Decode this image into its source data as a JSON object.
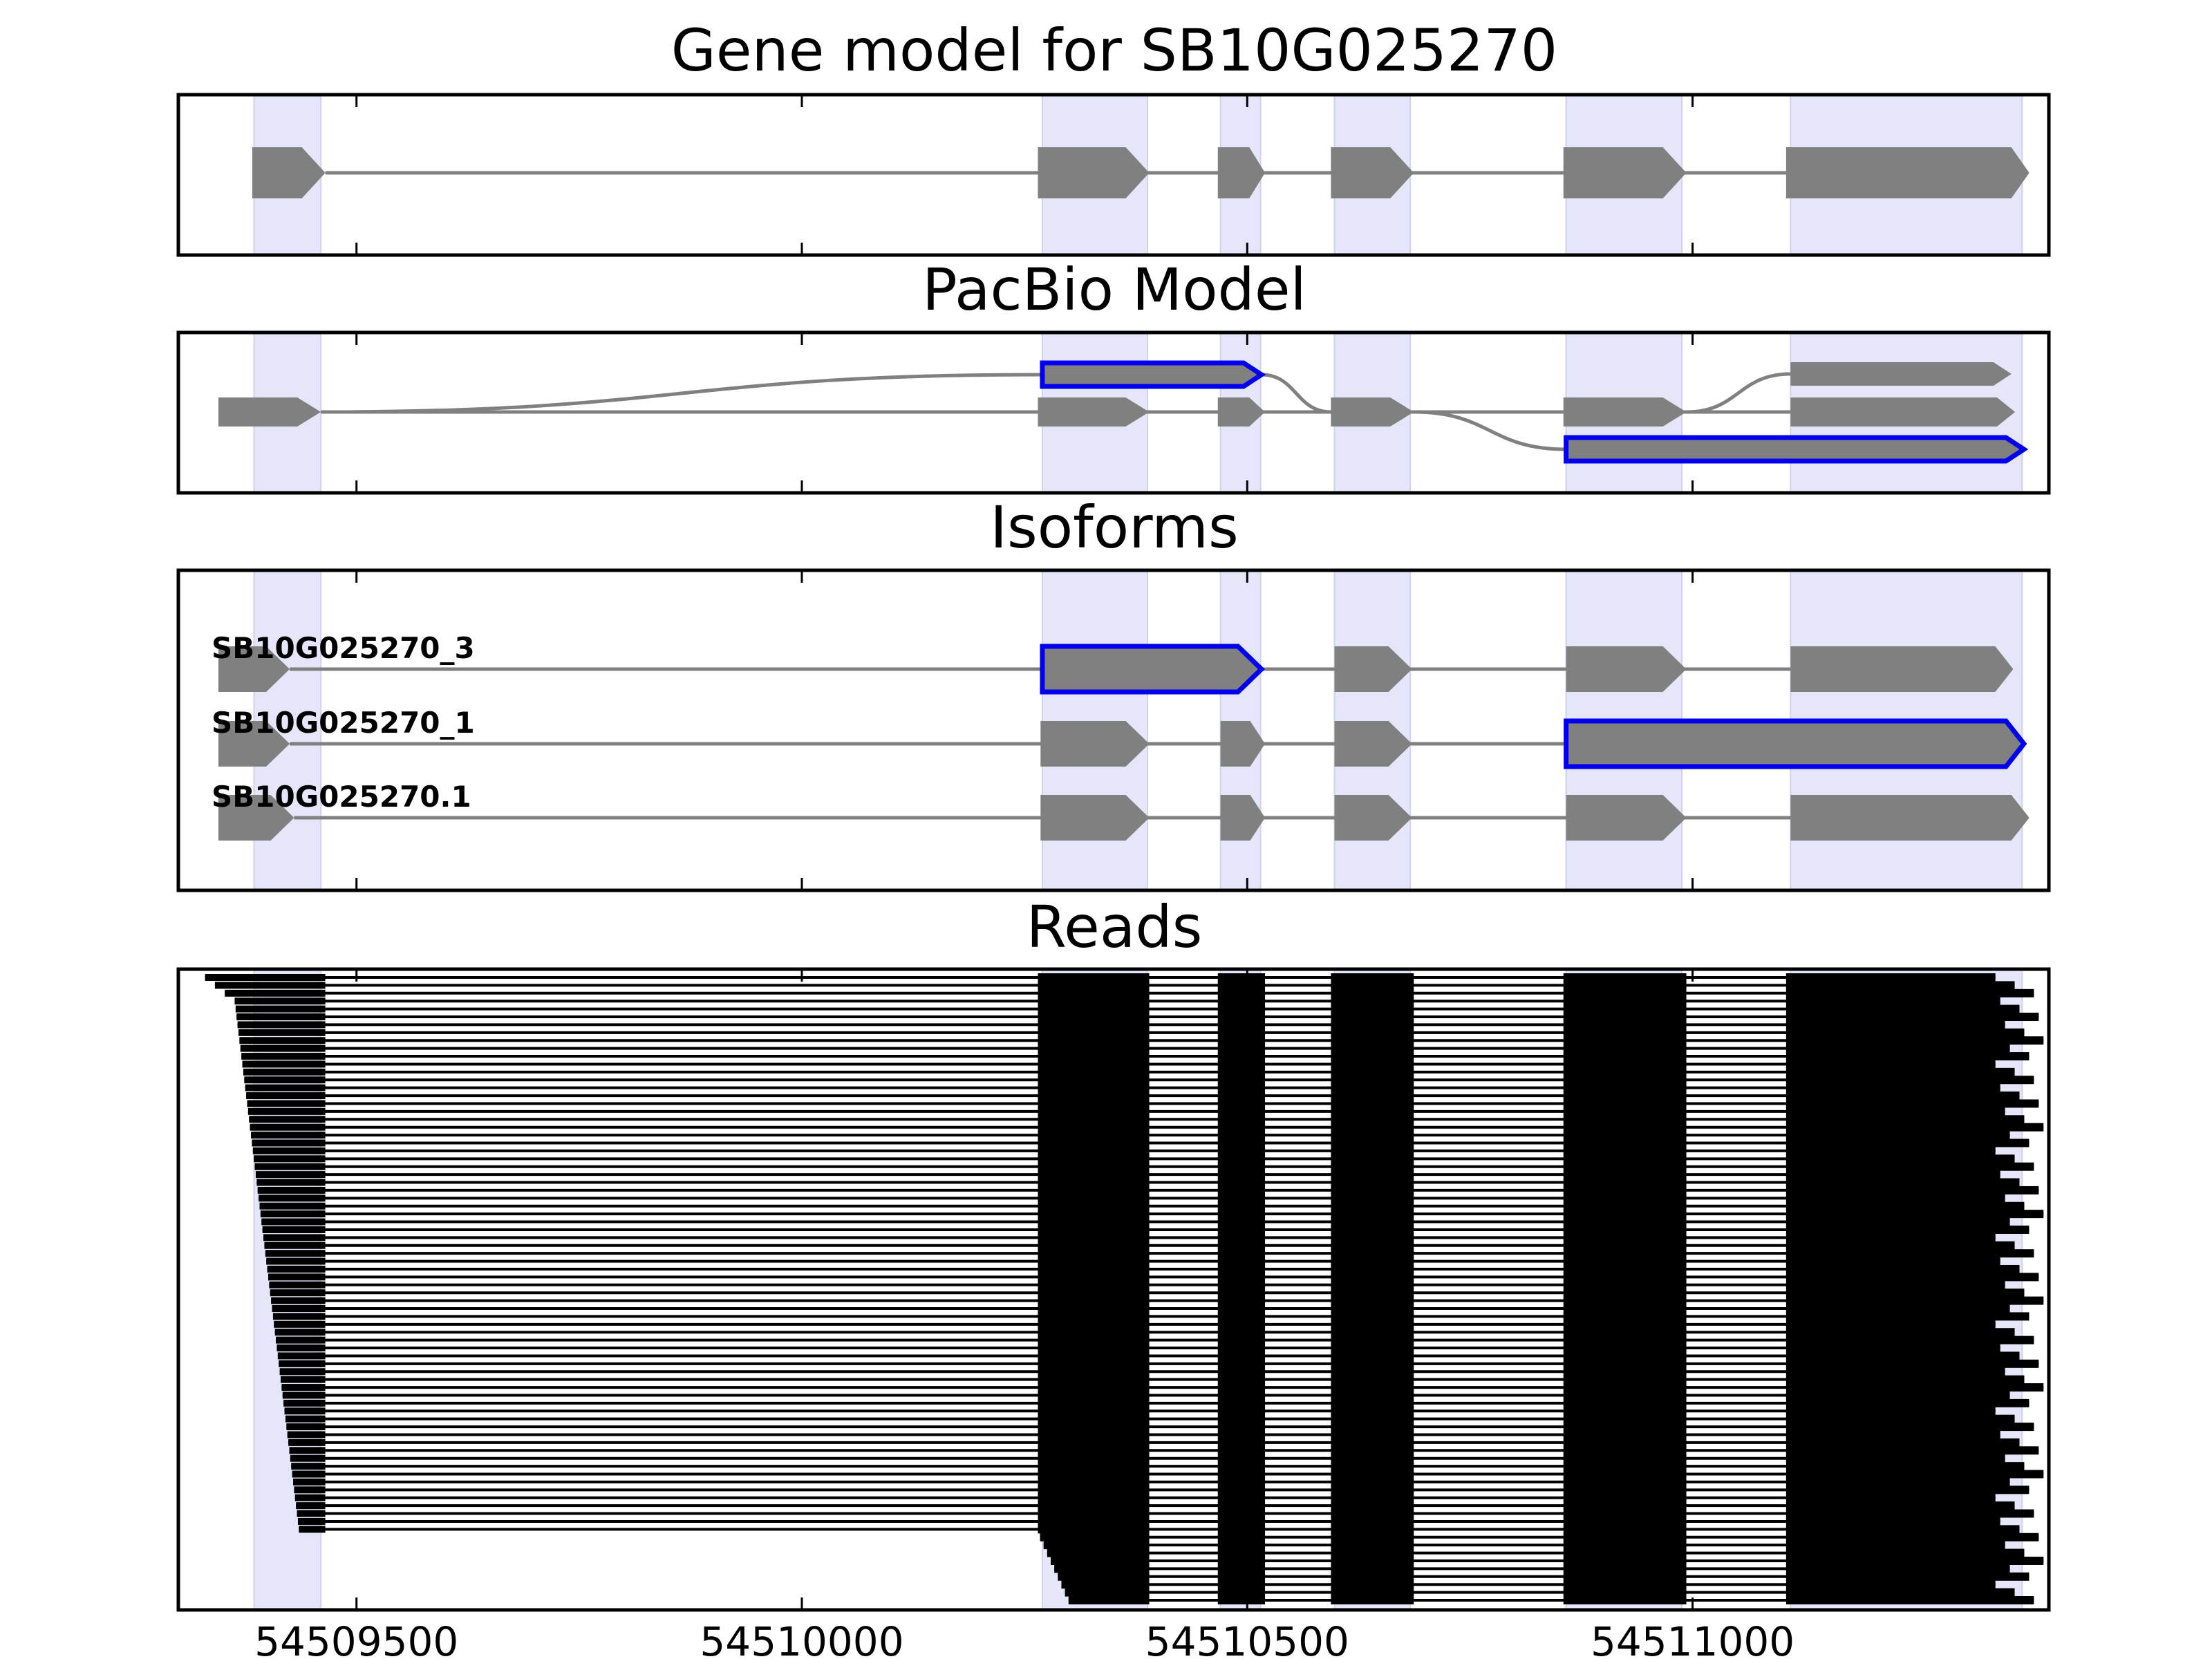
{
  "chart_data": {
    "type": "gene-structure",
    "xlim": [
      54509300,
      54511400
    ],
    "xticks": [
      54509500,
      54510000,
      54510500,
      54511000
    ],
    "highlight_color": "#e6e6fa",
    "feature_color": "#808080",
    "selected_color": "#0000ee",
    "exon_regions": [
      [
        54509385,
        54509460
      ],
      [
        54510270,
        54510388
      ],
      [
        54510470,
        54510515
      ],
      [
        54510598,
        54510683
      ],
      [
        54510858,
        54510988
      ],
      [
        54511110,
        54511370
      ]
    ],
    "panels": [
      {
        "title": "Gene model for SB10G025270",
        "tracks": [
          {
            "label": "",
            "selected": [],
            "exons": [
              [
                54509383,
                54509465
              ],
              [
                54510265,
                54510390
              ],
              [
                54510467,
                54510520
              ],
              [
                54510594,
                54510687
              ],
              [
                54510855,
                54510993
              ],
              [
                54511105,
                54511378
              ]
            ]
          }
        ]
      },
      {
        "title": "PacBio Model",
        "tracks": [
          {
            "label": "",
            "selected": [
              0
            ],
            "exons": [
              [
                54510270,
                54510516
              ]
            ]
          },
          {
            "label": "",
            "selected": [],
            "exons": [
              [
                54509345,
                54509460
              ],
              [
                54510265,
                54510390
              ],
              [
                54510467,
                54510520
              ],
              [
                54510594,
                54510687
              ],
              [
                54510855,
                54510993
              ],
              [
                54511110,
                54511362
              ]
            ]
          },
          {
            "label": "",
            "selected": [],
            "exons": [
              [
                54511110,
                54511358
              ]
            ]
          },
          {
            "label": "",
            "selected": [
              0
            ],
            "exons": [
              [
                54510858,
                54511372
              ]
            ]
          }
        ],
        "connections": [
          {
            "from": [
              54509460,
              1
            ],
            "to": [
              54510270,
              0
            ]
          },
          {
            "from": [
              54510516,
              0
            ],
            "to": [
              54510594,
              1
            ]
          },
          {
            "from": [
              54510687,
              1
            ],
            "to": [
              54510858,
              3
            ]
          },
          {
            "from": [
              54510993,
              1
            ],
            "to": [
              54511110,
              2
            ]
          }
        ]
      },
      {
        "title": "Isoforms",
        "tracks": [
          {
            "label": "SB10G025270_3",
            "selected": [
              1
            ],
            "exons": [
              [
                54509345,
                54509425
              ],
              [
                54510270,
                54510516
              ],
              [
                54510598,
                54510685
              ],
              [
                54510858,
                54510993
              ],
              [
                54511110,
                54511360
              ]
            ]
          },
          {
            "label": "SB10G025270_1",
            "selected": [
              4
            ],
            "exons": [
              [
                54509345,
                54509425
              ],
              [
                54510268,
                54510390
              ],
              [
                54510470,
                54510520
              ],
              [
                54510598,
                54510685
              ],
              [
                54510858,
                54511372
              ]
            ]
          },
          {
            "label": "SB10G025270.1",
            "selected": [],
            "exons": [
              [
                54509345,
                54509430
              ],
              [
                54510268,
                54510390
              ],
              [
                54510470,
                54510520
              ],
              [
                54510598,
                54510685
              ],
              [
                54510858,
                54510993
              ],
              [
                54511110,
                54511378
              ]
            ]
          }
        ]
      },
      {
        "title": "Reads",
        "read_count": 80,
        "read_exon_blocks": [
          [
            54510265,
            54510390
          ],
          [
            54510467,
            54510520
          ],
          [
            54510594,
            54510687
          ],
          [
            54510855,
            54510993
          ],
          [
            54511105,
            54511345
          ]
        ],
        "read_first_exon": [
          54509330,
          54509465
        ],
        "read_last_exon_end_range": [
          54511340,
          54511400
        ]
      }
    ]
  }
}
